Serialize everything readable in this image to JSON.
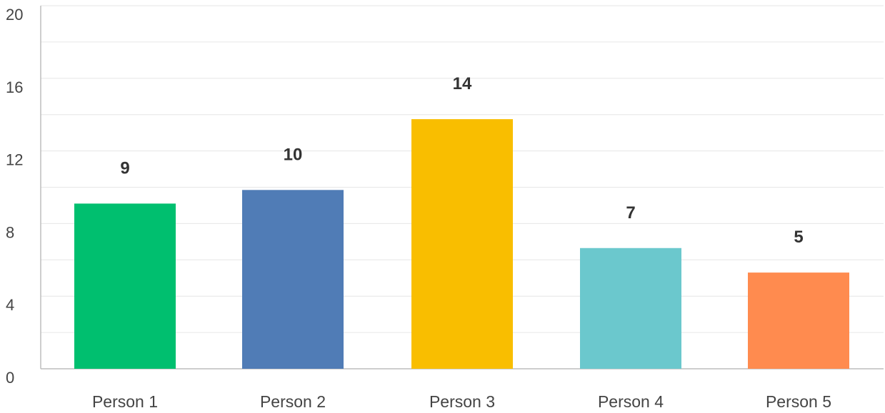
{
  "chart_data": {
    "type": "bar",
    "title": "",
    "xlabel": "",
    "ylabel": "",
    "categories": [
      "Person 1",
      "Person 2",
      "Person 3",
      "Person 4",
      "Person 5"
    ],
    "values": [
      9,
      10,
      14,
      7,
      5
    ],
    "data_labels": [
      "9",
      "10",
      "14",
      "7",
      "5"
    ],
    "bar_values_estimated": [
      9.1,
      9.85,
      13.75,
      6.65,
      5.3
    ],
    "colors": [
      "#00bf6f",
      "#507cb6",
      "#f9be00",
      "#6bc8cd",
      "#ff8b4f"
    ],
    "ylim": [
      0,
      20
    ],
    "y_ticks": [
      0,
      4,
      8,
      12,
      16,
      20
    ],
    "y_tick_labels": [
      "0",
      "4",
      "8",
      "12",
      "16",
      "20"
    ],
    "grid": true,
    "minor_grid_step": 2,
    "legend": "none"
  }
}
